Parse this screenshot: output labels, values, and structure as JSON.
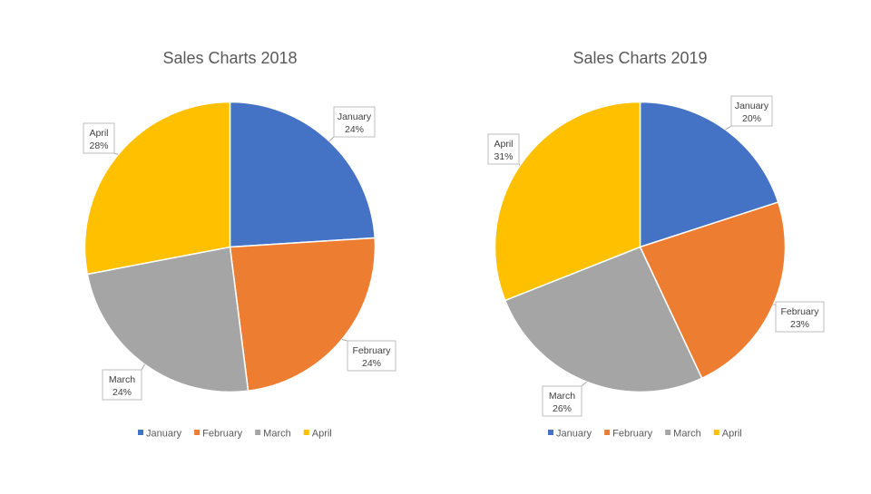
{
  "chart_data": [
    {
      "type": "pie",
      "title": "Sales Charts 2018",
      "categories": [
        "January",
        "February",
        "March",
        "April"
      ],
      "values": [
        24,
        24,
        24,
        28
      ],
      "labels": [
        "24%",
        "24%",
        "24%",
        "28%"
      ],
      "colors": [
        "#4472C4",
        "#ED7D31",
        "#A5A5A5",
        "#FFC000"
      ],
      "legend": "bottom"
    },
    {
      "type": "pie",
      "title": "Sales Charts 2019",
      "categories": [
        "January",
        "February",
        "March",
        "April"
      ],
      "values": [
        20,
        23,
        26,
        31
      ],
      "labels": [
        "20%",
        "23%",
        "26%",
        "31%"
      ],
      "colors": [
        "#4472C4",
        "#ED7D31",
        "#A5A5A5",
        "#FFC000"
      ],
      "legend": "bottom"
    }
  ]
}
